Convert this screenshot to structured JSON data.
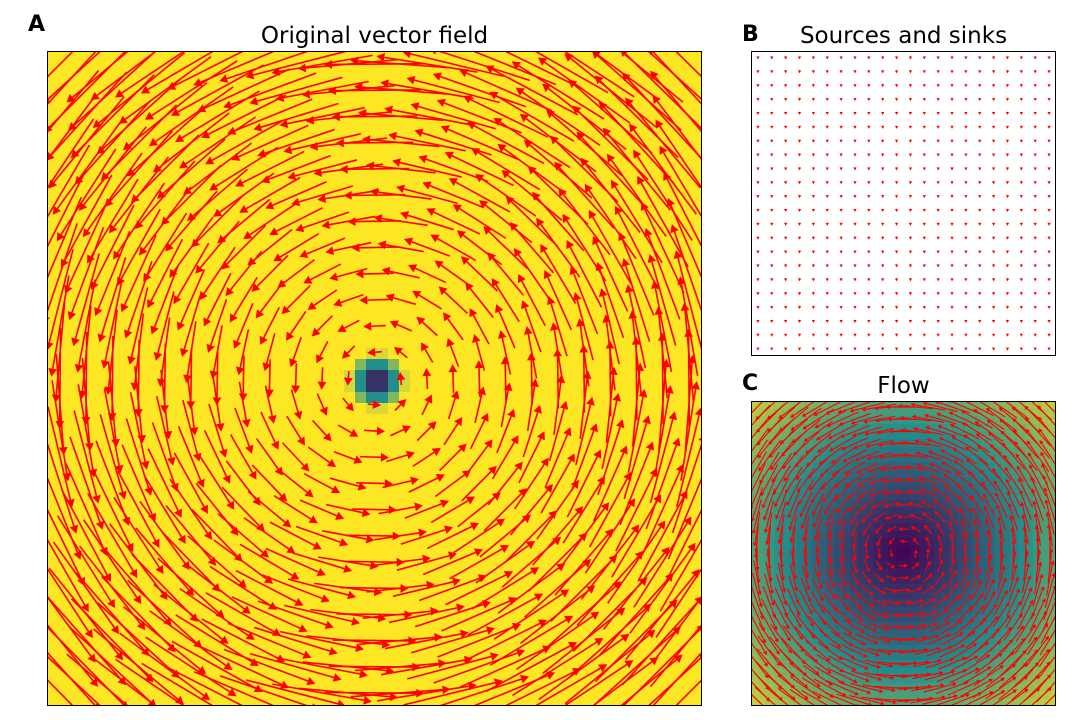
{
  "panels": {
    "a": {
      "letter": "A",
      "title": "Original vector field"
    },
    "b": {
      "letter": "B",
      "title": "Sources and sinks"
    },
    "c": {
      "letter": "C",
      "title": "Flow"
    }
  },
  "colors": {
    "arrow": "#ff0000",
    "viridis_low": "#440154",
    "viridis_mid": "#21918c",
    "viridis_high": "#fde725",
    "frame": "#000000"
  },
  "chart_data": [
    {
      "panel": "A",
      "type": "heatmap",
      "title": "Original vector field",
      "overlay": "quiver",
      "field": "counter-clockwise vortex centered in panel",
      "colormap": "viridis",
      "background_level": "high (yellow) everywhere except a small low-valued (dark) spot at the vortex center",
      "quiver_grid": [
        25,
        25
      ],
      "axes_visible": false,
      "grid": false
    },
    {
      "panel": "B",
      "type": "heatmap",
      "title": "Sources and sinks",
      "overlay": "quiver",
      "field": "near-zero divergence; uniform tiny arrows",
      "colormap": "none (white)",
      "quiver_grid": [
        22,
        22
      ],
      "axes_visible": false,
      "grid": false
    },
    {
      "panel": "C",
      "type": "heatmap",
      "title": "Flow",
      "overlay": "quiver",
      "field": "counter-clockwise rotation (curl component)",
      "colormap": "viridis",
      "background_level": "low (purple) at center, rising to mid (teal) and high (yellow) at corners",
      "quiver_grid": [
        25,
        25
      ],
      "axes_visible": false,
      "grid": false
    }
  ]
}
